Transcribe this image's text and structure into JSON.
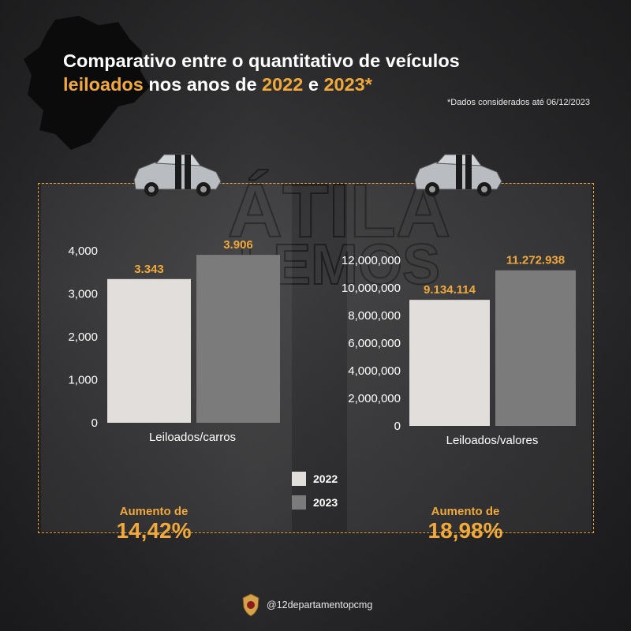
{
  "title": {
    "line1": "Comparativo entre o quantitativo de veículos",
    "line2_highlight_1": "leiloados",
    "line2_text_1": " nos anos de ",
    "line2_highlight_2": "2022",
    "line2_text_2": " e ",
    "line2_highlight_3": "2023*"
  },
  "note": "*Dados considerados até 06/12/2023",
  "watermark": {
    "line1": "ÁTILA",
    "line2": "LEMOS"
  },
  "legend": [
    {
      "label": "2022",
      "color": "#e2dedb"
    },
    {
      "label": "2023",
      "color": "#7b7b7b"
    }
  ],
  "increases": [
    {
      "label": "Aumento de",
      "value": "14,42%"
    },
    {
      "label": "Aumento de",
      "value": "18,98%"
    }
  ],
  "footer": {
    "handle": "@12departamentopcmg",
    "badge_icon": "police-badge-icon"
  },
  "colors": {
    "accent": "#f0a93a",
    "bar_2022": "#e2dedb",
    "bar_2023": "#7b7b7b"
  },
  "chart_data": [
    {
      "type": "bar",
      "categories": [
        "Leiloados/carros"
      ],
      "series": [
        {
          "name": "2022",
          "values": [
            3343
          ],
          "label": "3.343"
        },
        {
          "name": "2023",
          "values": [
            3906
          ],
          "label": "3.906"
        }
      ],
      "yticks": [
        0,
        1000,
        2000,
        3000,
        4000
      ],
      "ytick_labels": [
        "0",
        "1,000",
        "2,000",
        "3,000",
        "4,000"
      ],
      "ylim": [
        0,
        4000
      ],
      "xlabel": "Leiloados/carros"
    },
    {
      "type": "bar",
      "categories": [
        "Leiloados/valores"
      ],
      "series": [
        {
          "name": "2022",
          "values": [
            9134114
          ],
          "label": "9.134.114"
        },
        {
          "name": "2023",
          "values": [
            11272938
          ],
          "label": "11.272.938"
        }
      ],
      "yticks": [
        0,
        2000000,
        4000000,
        6000000,
        8000000,
        10000000,
        12000000
      ],
      "ytick_labels": [
        "0",
        "2,000,000",
        "4,000,000",
        "6,000,000",
        "8,000,000",
        "10,000,000",
        "12,000,000"
      ],
      "ylim": [
        0,
        12000000
      ],
      "xlabel": "Leiloados/valores"
    }
  ]
}
